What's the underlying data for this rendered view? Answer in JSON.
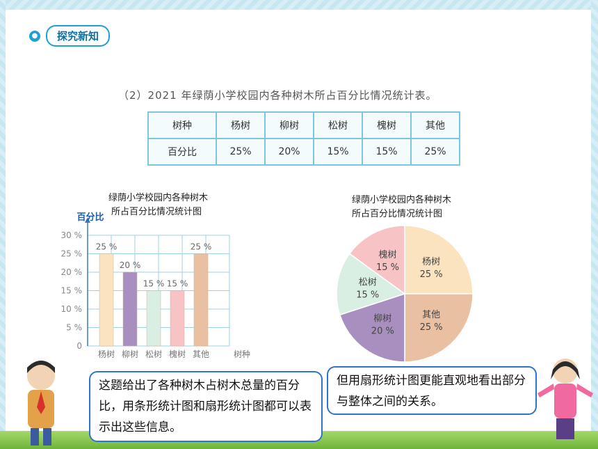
{
  "section": {
    "label": "探究新知"
  },
  "table": {
    "title": "（2）2021 年绿荫小学校园内各种树木所占百分比情况统计表。",
    "header": [
      "树种",
      "杨树",
      "柳树",
      "松树",
      "槐树",
      "其他"
    ],
    "row": [
      "百分比",
      "25%",
      "20%",
      "15%",
      "15%",
      "25%"
    ]
  },
  "bar_title": {
    "line1": "绿荫小学校园内各种树木",
    "line2": "所占百分比情况统计图"
  },
  "pie_title": {
    "line1": "绿荫小学校园内各种树木",
    "line2": "所占百分比情况统计图"
  },
  "chart_data": [
    {
      "type": "bar",
      "title": "绿荫小学校园内各种树木所占百分比情况统计图",
      "ylabel": "百分比",
      "xlabel": "树种",
      "categories": [
        "杨树",
        "柳树",
        "松树",
        "槐树",
        "其他"
      ],
      "values": [
        25,
        20,
        15,
        15,
        25
      ],
      "value_labels": [
        "25 %",
        "20 %",
        "15 %",
        "15 %",
        "25 %"
      ],
      "yticks": [
        "0",
        "5 %",
        "10 %",
        "15 %",
        "20 %",
        "25 %",
        "30 %"
      ],
      "ylim": [
        0,
        30
      ],
      "grid": true,
      "colors": [
        "#fbe3c0",
        "#a98fbf",
        "#d9efe3",
        "#f7c3c5",
        "#e9c0a2"
      ]
    },
    {
      "type": "pie",
      "title": "绿荫小学校园内各种树木所占百分比情况统计图",
      "slices": [
        {
          "name": "杨树",
          "value": 25,
          "label": "25 %",
          "color": "#fbe3c0"
        },
        {
          "name": "其他",
          "value": 25,
          "label": "25 %",
          "color": "#e9c0a2"
        },
        {
          "name": "柳树",
          "value": 20,
          "label": "20 %",
          "color": "#a98fbf"
        },
        {
          "name": "松树",
          "value": 15,
          "label": "15 %",
          "color": "#d9efe3"
        },
        {
          "name": "槐树",
          "value": 15,
          "label": "15 %",
          "color": "#f7c3c5"
        }
      ]
    }
  ],
  "speech": {
    "boy": "这题给出了各种树木占树木总量的百分比，用条形统计图和扇形统计图都可以表示出这些信息。",
    "girl": "但用扇形统计图更能直观地看出部分与整体之间的关系。"
  },
  "colors": {
    "accent": "#1f9fd6",
    "bubble_border": "#2e74c9",
    "grid": "#9cd0e4"
  }
}
